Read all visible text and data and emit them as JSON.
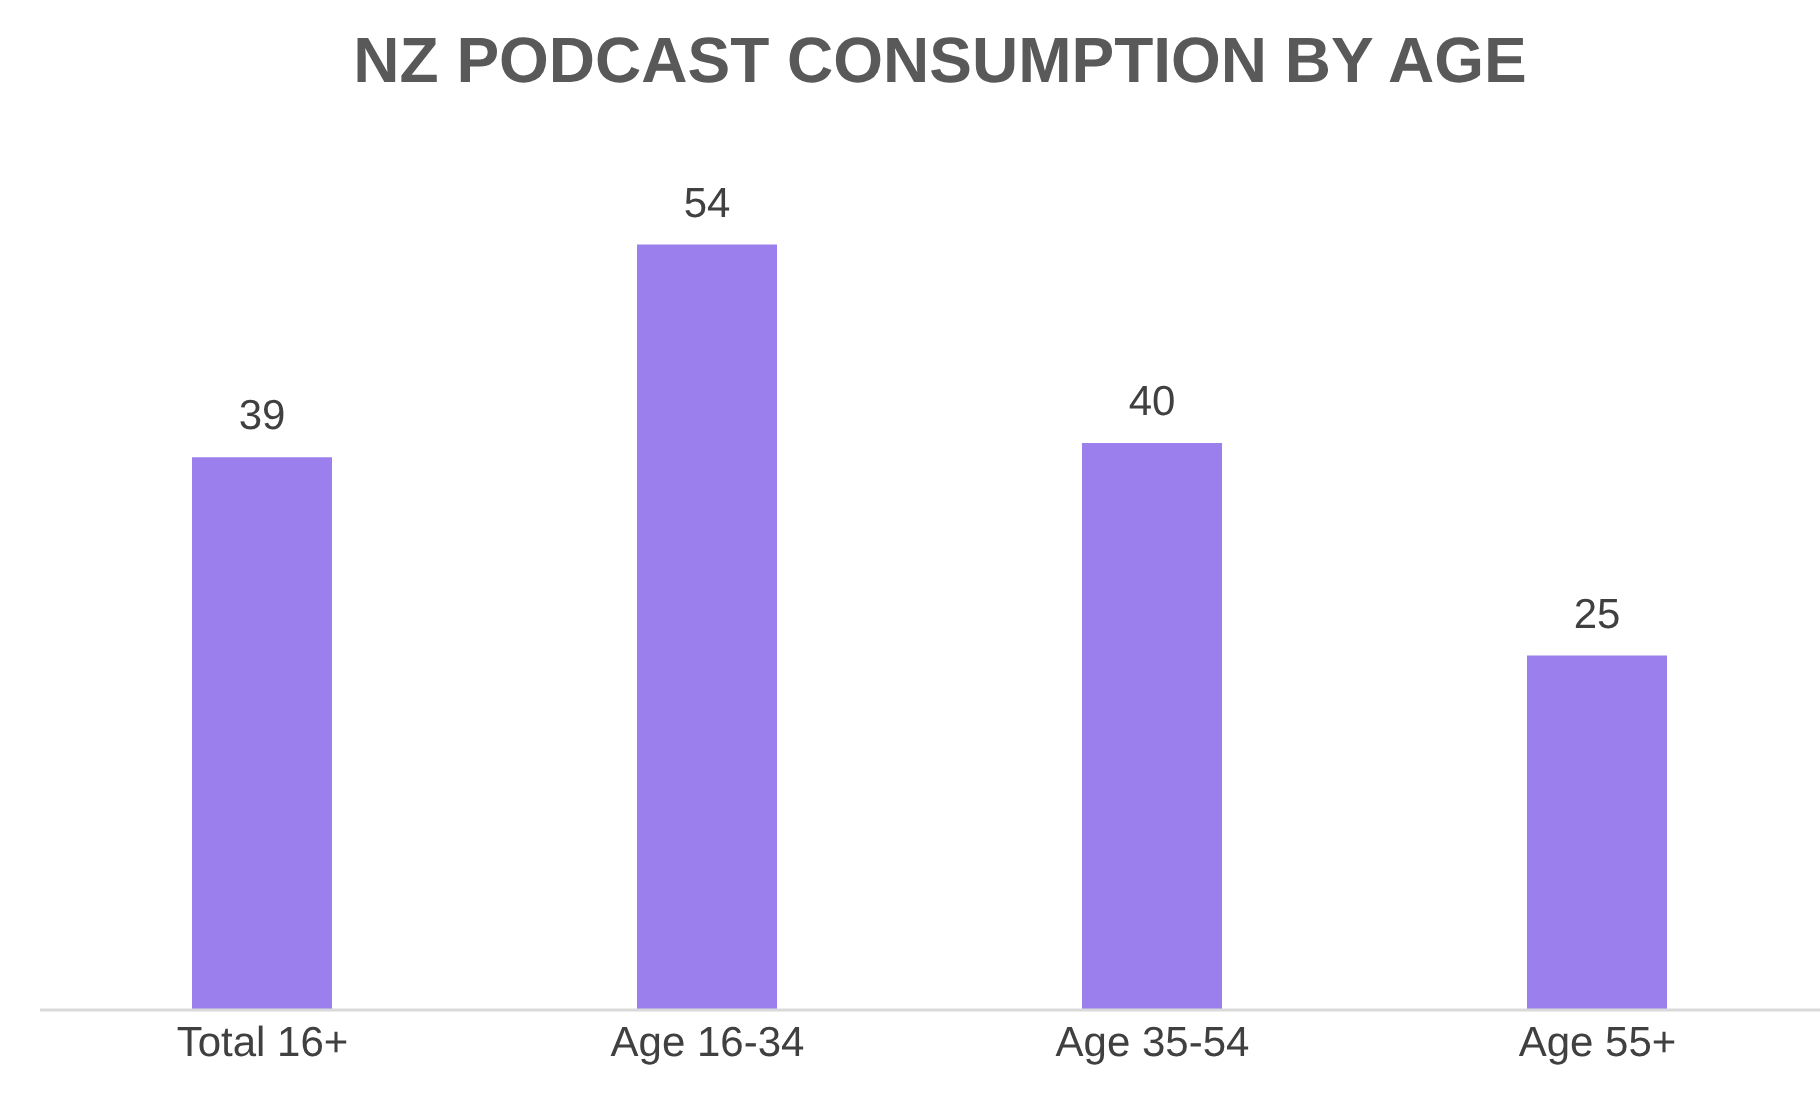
{
  "chart_data": {
    "type": "bar",
    "title": "NZ PODCAST CONSUMPTION BY AGE",
    "categories": [
      "Total 16+",
      "Age 16-34",
      "Age 35-54",
      "Age 55+"
    ],
    "values": [
      39,
      54,
      40,
      25
    ],
    "color": "#9b7fec",
    "data_labels": true
  }
}
